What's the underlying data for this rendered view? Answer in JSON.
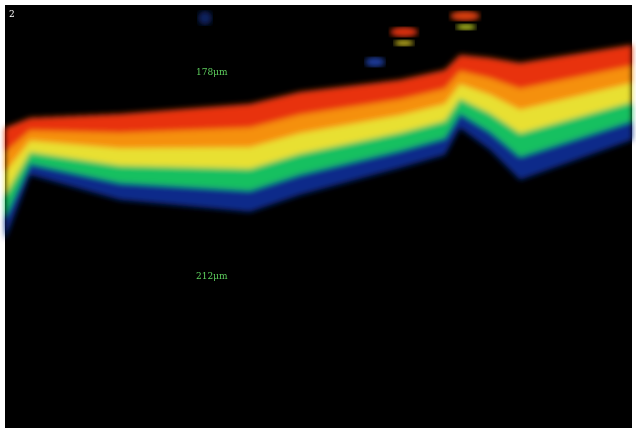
{
  "labels": {
    "panel": "2",
    "upper": "178μm",
    "lower": "212μm"
  }
}
